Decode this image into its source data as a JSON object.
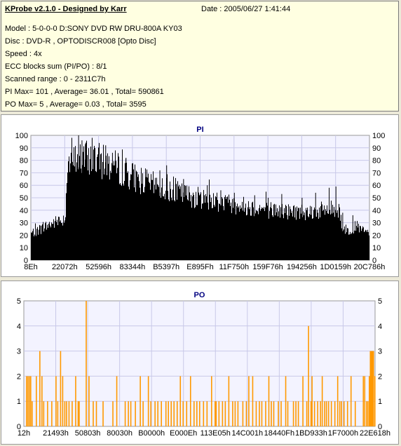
{
  "info": {
    "app_title": "KProbe v2.1.0 - Designed by Karr",
    "date": "Date : 2005/06/27 1:41:44",
    "model": "Model : 5-0-0-0 D:SONY    DVD RW DRU-800A  KY03",
    "disc": "Disc : DVD-R , OPTODISCR008 [Opto Disc]",
    "speed": "Speed : 4x",
    "ecc": "ECC blocks sum (PI/PO) : 8/1",
    "range": "Scanned range : 0 - 2311C7h",
    "pi_stats": "PI Max= 101 , Average= 36.01 , Total= 590861",
    "po_stats": "PO Max= 5 , Average= 0.03 , Total= 3595"
  },
  "chart_data": [
    {
      "type": "bar",
      "title": "PI",
      "ylim": [
        0,
        100
      ],
      "yticks": [
        "0",
        "10",
        "20",
        "30",
        "40",
        "50",
        "60",
        "70",
        "80",
        "90",
        "100"
      ],
      "xticks": [
        "8Eh",
        "22072h",
        "52596h",
        "83344h",
        "B5397h",
        "E895Fh",
        "11F750h",
        "159F76h",
        "194256h",
        "1D0159h",
        "20C786h"
      ],
      "bar_color": "#000000",
      "grid": true,
      "envelope": [
        [
          0,
          22
        ],
        [
          3,
          26
        ],
        [
          6,
          30
        ],
        [
          9,
          33
        ],
        [
          10.2,
          36
        ],
        [
          10.6,
          78
        ],
        [
          13,
          82
        ],
        [
          17,
          84
        ],
        [
          20,
          82
        ],
        [
          24,
          78
        ],
        [
          28,
          72
        ],
        [
          32,
          66
        ],
        [
          36,
          62
        ],
        [
          40,
          58
        ],
        [
          44,
          55
        ],
        [
          48,
          52
        ],
        [
          52,
          50
        ],
        [
          56,
          48
        ],
        [
          60,
          46
        ],
        [
          64,
          44
        ],
        [
          68,
          42
        ],
        [
          72,
          41
        ],
        [
          76,
          40
        ],
        [
          80,
          40
        ],
        [
          84,
          40
        ],
        [
          88,
          42
        ],
        [
          91,
          42
        ],
        [
          92,
          26
        ],
        [
          94,
          24
        ],
        [
          96,
          28
        ],
        [
          98,
          24
        ],
        [
          100,
          22
        ]
      ],
      "peaks": [
        [
          12,
          98
        ],
        [
          14,
          100
        ],
        [
          15,
          96
        ],
        [
          16,
          93
        ],
        [
          18,
          98
        ],
        [
          22,
          92
        ],
        [
          24,
          86
        ],
        [
          28,
          82
        ],
        [
          38,
          72
        ],
        [
          40,
          76
        ],
        [
          45,
          65
        ],
        [
          52,
          60
        ],
        [
          56,
          56
        ],
        [
          60,
          54
        ],
        [
          66,
          52
        ],
        [
          70,
          50
        ],
        [
          74,
          53
        ],
        [
          80,
          50
        ],
        [
          84,
          54
        ],
        [
          88,
          58
        ],
        [
          90,
          59
        ],
        [
          92,
          38
        ],
        [
          95,
          36
        ]
      ]
    },
    {
      "type": "bar",
      "title": "PO",
      "ylim": [
        0,
        5
      ],
      "yticks": [
        "0",
        "1",
        "2",
        "3",
        "4",
        "5"
      ],
      "xticks": [
        "12h",
        "21493h",
        "50803h",
        "80030h",
        "B0000h",
        "E000Eh",
        "113E05h",
        "14C001h",
        "18440Fh",
        "1BD933h",
        "1F7000h",
        "22E618h"
      ],
      "bar_color": "#ff9900",
      "grid": true,
      "bars": [
        [
          0.6,
          2
        ],
        [
          1.0,
          2
        ],
        [
          1.4,
          2
        ],
        [
          1.8,
          2
        ],
        [
          2.2,
          1
        ],
        [
          3.4,
          2
        ],
        [
          4.4,
          3
        ],
        [
          5.0,
          2
        ],
        [
          5.5,
          1
        ],
        [
          6.6,
          1
        ],
        [
          7.8,
          1
        ],
        [
          9.0,
          2
        ],
        [
          9.5,
          1
        ],
        [
          10.3,
          3
        ],
        [
          10.9,
          2
        ],
        [
          11.5,
          1
        ],
        [
          12.0,
          1
        ],
        [
          12.7,
          1
        ],
        [
          13.6,
          1
        ],
        [
          14.6,
          2
        ],
        [
          15.3,
          1
        ],
        [
          15.6,
          1
        ],
        [
          17.6,
          5
        ],
        [
          18.4,
          2
        ],
        [
          19.6,
          1
        ],
        [
          20.5,
          1
        ],
        [
          22.4,
          1
        ],
        [
          25.2,
          1
        ],
        [
          26.3,
          2
        ],
        [
          28.7,
          1
        ],
        [
          29.6,
          1
        ],
        [
          30.3,
          1
        ],
        [
          31.6,
          1
        ],
        [
          33.0,
          2
        ],
        [
          33.8,
          1
        ],
        [
          35.3,
          2
        ],
        [
          36.0,
          1
        ],
        [
          37.2,
          1
        ],
        [
          38.0,
          1
        ],
        [
          39.0,
          1
        ],
        [
          40.3,
          1
        ],
        [
          41.0,
          1
        ],
        [
          41.8,
          1
        ],
        [
          42.6,
          1
        ],
        [
          43.5,
          1
        ],
        [
          44.4,
          2
        ],
        [
          45.2,
          1
        ],
        [
          46.2,
          1
        ],
        [
          47.3,
          2
        ],
        [
          48.3,
          1
        ],
        [
          49.1,
          1
        ],
        [
          49.9,
          1
        ],
        [
          51.0,
          1
        ],
        [
          52.0,
          1
        ],
        [
          53.3,
          2
        ],
        [
          54.3,
          1
        ],
        [
          54.6,
          1
        ],
        [
          55.4,
          1
        ],
        [
          56.4,
          1
        ],
        [
          57.2,
          1
        ],
        [
          58.2,
          2
        ],
        [
          59.3,
          1
        ],
        [
          60.0,
          1
        ],
        [
          60.8,
          1
        ],
        [
          62.2,
          1
        ],
        [
          63.2,
          1
        ],
        [
          63.9,
          2
        ],
        [
          65.0,
          2
        ],
        [
          66.0,
          1
        ],
        [
          66.9,
          1
        ],
        [
          67.6,
          1
        ],
        [
          68.7,
          1
        ],
        [
          69.6,
          2
        ],
        [
          70.3,
          1
        ],
        [
          71.0,
          1
        ],
        [
          72.3,
          1
        ],
        [
          73.1,
          1
        ],
        [
          74.4,
          2
        ],
        [
          75.0,
          1
        ],
        [
          76.6,
          1
        ],
        [
          77.3,
          1
        ],
        [
          78.0,
          1
        ],
        [
          79.3,
          2
        ],
        [
          80.4,
          1
        ],
        [
          80.9,
          4
        ],
        [
          81.6,
          1
        ],
        [
          81.9,
          2
        ],
        [
          82.6,
          1
        ],
        [
          83.5,
          1
        ],
        [
          84.3,
          1
        ],
        [
          84.8,
          2
        ],
        [
          85.5,
          1
        ],
        [
          86.0,
          1
        ],
        [
          86.6,
          1
        ],
        [
          87.4,
          1
        ],
        [
          88.4,
          1
        ],
        [
          89.2,
          2
        ],
        [
          89.8,
          1
        ],
        [
          90.3,
          1
        ],
        [
          91.0,
          1
        ],
        [
          92.0,
          1
        ],
        [
          93.0,
          2
        ],
        [
          94.2,
          1
        ],
        [
          96.5,
          2
        ],
        [
          96.9,
          2
        ],
        [
          97.4,
          1
        ],
        [
          97.8,
          1
        ],
        [
          98.2,
          2
        ],
        [
          98.5,
          3
        ],
        [
          98.8,
          3
        ],
        [
          99.1,
          3
        ],
        [
          99.4,
          3
        ],
        [
          99.8,
          2
        ]
      ]
    }
  ]
}
